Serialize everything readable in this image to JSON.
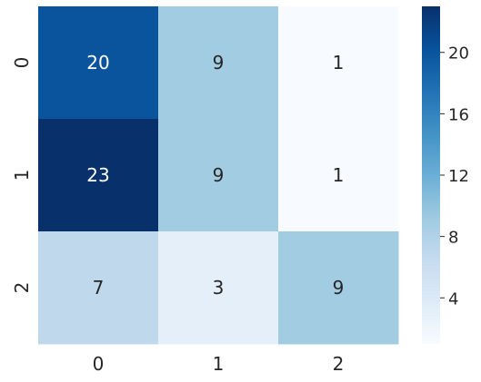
{
  "chart_data": {
    "type": "heatmap",
    "title": "",
    "xlabel": "",
    "ylabel": "",
    "x_categories": [
      "0",
      "1",
      "2"
    ],
    "y_categories": [
      "0",
      "1",
      "2"
    ],
    "values": [
      [
        20,
        9,
        1
      ],
      [
        23,
        9,
        1
      ],
      [
        7,
        3,
        9
      ]
    ],
    "colormap": "Blues",
    "colorbar": {
      "min": 1,
      "max": 23,
      "ticks": [
        4,
        8,
        12,
        16,
        20
      ],
      "tick_labels": [
        "4",
        "8",
        "12",
        "16",
        "20"
      ]
    },
    "annotations": true,
    "grid": false
  }
}
